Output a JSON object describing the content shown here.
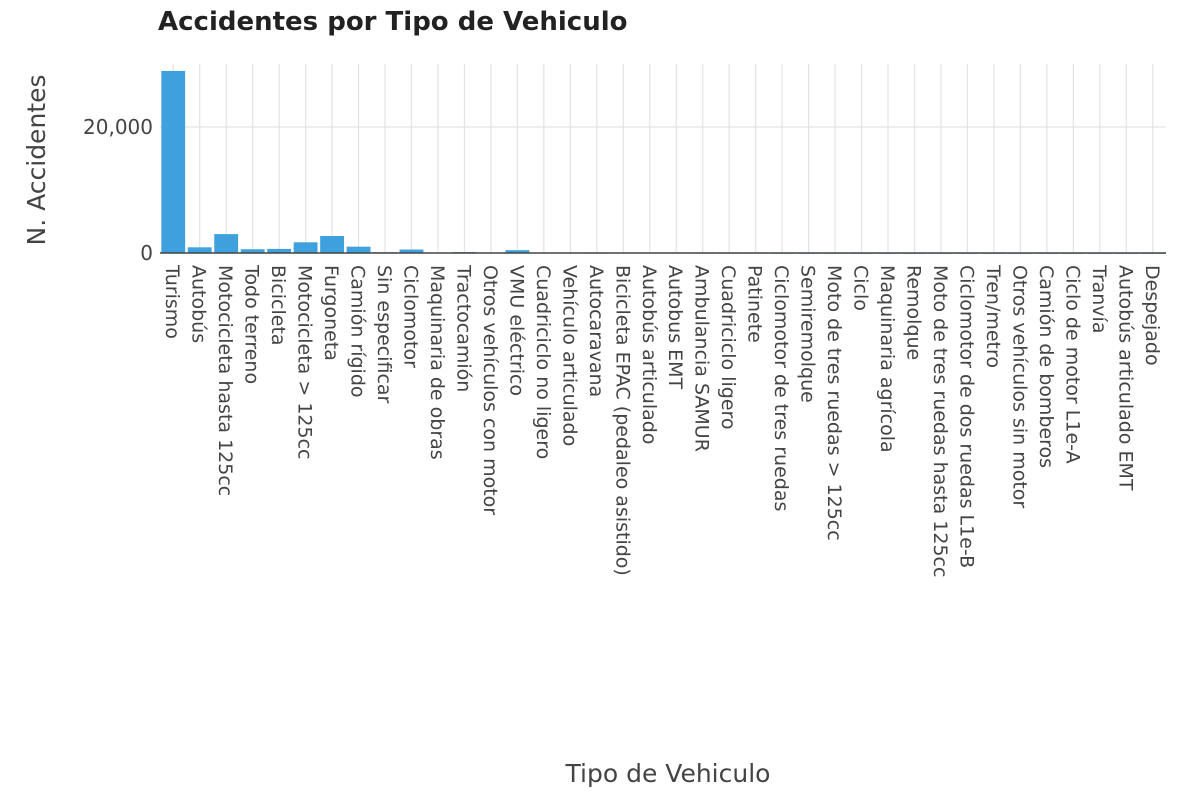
{
  "chart_data": {
    "type": "bar",
    "title": "Accidentes por Tipo de Vehiculo",
    "xlabel": "Tipo de Vehiculo",
    "ylabel": "N. Accidentes",
    "ylim": [
      0,
      30000
    ],
    "yticks": [
      0,
      20000
    ],
    "ytick_labels": [
      "0",
      "20,000"
    ],
    "grid": true,
    "bar_color": "#3ea1dd",
    "categories": [
      "Turismo",
      "Autobús",
      "Motocicleta hasta 125cc",
      "Todo terreno",
      "Bicicleta",
      "Motocicleta > 125cc",
      "Furgoneta",
      "Camión rígido",
      "Sin especificar",
      "Ciclomotor",
      "Maquinaria de obras",
      "Tractocamión",
      "Otros vehículos con motor",
      "VMU eléctrico",
      "Cuadriciclo no ligero",
      "Vehículo articulado",
      "Autocaravana",
      "Bicicleta EPAC (pedaleo asistido)",
      "Autobús articulado",
      "Autobus EMT",
      "Ambulancia SAMUR",
      "Cuadriciclo ligero",
      "Patinete",
      "Ciclomotor de tres ruedas",
      "Semiremolque",
      "Moto de tres ruedas > 125cc",
      "Ciclo",
      "Maquinaria agrícola",
      "Remolque",
      "Moto de tres ruedas hasta 125cc",
      "Ciclomotor de dos ruedas L1e-B",
      "Tren/metro",
      "Otros vehículos sin motor",
      "Camión de bomberos",
      "Ciclo de motor L1e-A",
      "Tranvía",
      "Autobús articulado EMT",
      "Despejado"
    ],
    "values": [
      28900,
      900,
      3000,
      600,
      650,
      1700,
      2700,
      1000,
      120,
      550,
      60,
      150,
      80,
      450,
      70,
      40,
      30,
      60,
      50,
      40,
      30,
      25,
      30,
      15,
      10,
      10,
      8,
      8,
      6,
      6,
      5,
      4,
      4,
      3,
      3,
      2,
      2,
      1
    ]
  }
}
